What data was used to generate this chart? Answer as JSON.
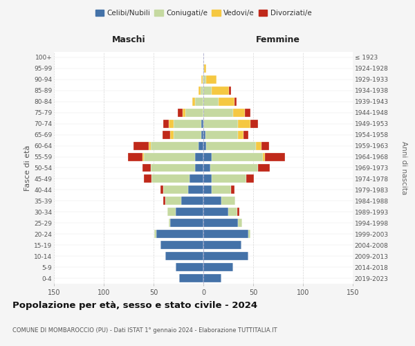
{
  "age_groups_bottom_to_top": [
    "0-4",
    "5-9",
    "10-14",
    "15-19",
    "20-24",
    "25-29",
    "30-34",
    "35-39",
    "40-44",
    "45-49",
    "50-54",
    "55-59",
    "60-64",
    "65-69",
    "70-74",
    "75-79",
    "80-84",
    "85-89",
    "90-94",
    "95-99",
    "100+"
  ],
  "birth_years_bottom_to_top": [
    "2019-2023",
    "2014-2018",
    "2009-2013",
    "2004-2008",
    "1999-2003",
    "1994-1998",
    "1989-1993",
    "1984-1988",
    "1979-1983",
    "1974-1978",
    "1969-1973",
    "1964-1968",
    "1959-1963",
    "1954-1958",
    "1949-1953",
    "1944-1948",
    "1939-1943",
    "1934-1938",
    "1929-1933",
    "1924-1928",
    "≤ 1923"
  ],
  "male": {
    "celibi": [
      24,
      28,
      38,
      43,
      47,
      33,
      28,
      22,
      15,
      14,
      8,
      8,
      5,
      2,
      2,
      0,
      0,
      0,
      0,
      0,
      0
    ],
    "coniugati": [
      0,
      0,
      0,
      0,
      2,
      2,
      8,
      16,
      25,
      38,
      45,
      52,
      48,
      28,
      28,
      18,
      8,
      3,
      1,
      0,
      0
    ],
    "vedovi": [
      0,
      0,
      0,
      0,
      0,
      0,
      0,
      0,
      0,
      0,
      0,
      1,
      2,
      3,
      5,
      3,
      3,
      2,
      1,
      0,
      0
    ],
    "divorziati": [
      0,
      0,
      0,
      0,
      0,
      0,
      0,
      2,
      3,
      8,
      8,
      15,
      15,
      8,
      5,
      5,
      0,
      0,
      0,
      0,
      0
    ]
  },
  "female": {
    "nubili": [
      18,
      30,
      45,
      38,
      45,
      35,
      25,
      18,
      8,
      8,
      7,
      8,
      3,
      2,
      0,
      0,
      0,
      0,
      0,
      0,
      0
    ],
    "coniugate": [
      0,
      0,
      0,
      0,
      2,
      4,
      9,
      14,
      20,
      35,
      48,
      52,
      50,
      33,
      35,
      30,
      15,
      8,
      3,
      1,
      0
    ],
    "vedove": [
      0,
      0,
      0,
      0,
      0,
      0,
      0,
      0,
      0,
      0,
      0,
      2,
      5,
      5,
      12,
      12,
      16,
      18,
      10,
      2,
      0
    ],
    "divorziate": [
      0,
      0,
      0,
      0,
      0,
      0,
      2,
      0,
      3,
      8,
      12,
      20,
      8,
      5,
      8,
      5,
      2,
      2,
      0,
      0,
      0
    ]
  },
  "colors": {
    "celibi": "#4472a8",
    "coniugati": "#c5d9a0",
    "vedovi": "#f5c842",
    "divorziati": "#c0291a"
  },
  "legend_labels": [
    "Celibi/Nubili",
    "Coniugati/e",
    "Vedovi/e",
    "Divorziati/e"
  ],
  "label_maschi": "Maschi",
  "label_femmine": "Femmine",
  "ylabel_left": "Fasce di età",
  "ylabel_right": "Anni di nascita",
  "title": "Popolazione per età, sesso e stato civile - 2024",
  "subtitle": "COMUNE DI MOMBAROCCIO (PU) - Dati ISTAT 1° gennaio 2024 - Elaborazione TUTTITALIA.IT",
  "xlim": 150,
  "bg_color": "#f5f5f5",
  "grid_color": "#cccccc",
  "plot_bg": "#ffffff"
}
